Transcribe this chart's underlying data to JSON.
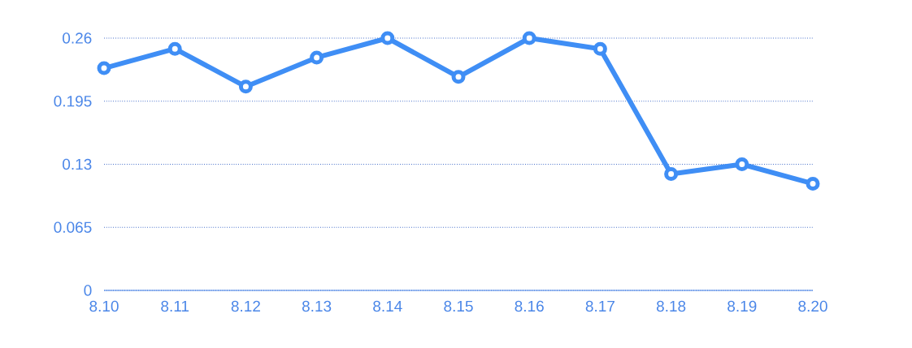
{
  "chart_data": {
    "type": "line",
    "categories": [
      "8.10",
      "8.11",
      "8.12",
      "8.13",
      "8.14",
      "8.15",
      "8.16",
      "8.17",
      "8.18",
      "8.19",
      "8.20"
    ],
    "series": [
      {
        "color": "#3f8ef5",
        "values": [
          0.229,
          0.249,
          0.21,
          0.24,
          0.26,
          0.22,
          0.26,
          0.249,
          0.12,
          0.13,
          0.11
        ]
      }
    ],
    "ylim": [
      0,
      0.26
    ],
    "yticks": [
      0,
      0.065,
      0.13,
      0.195,
      0.26
    ],
    "grid": "y",
    "marker": "circle",
    "line_style": "solid"
  }
}
